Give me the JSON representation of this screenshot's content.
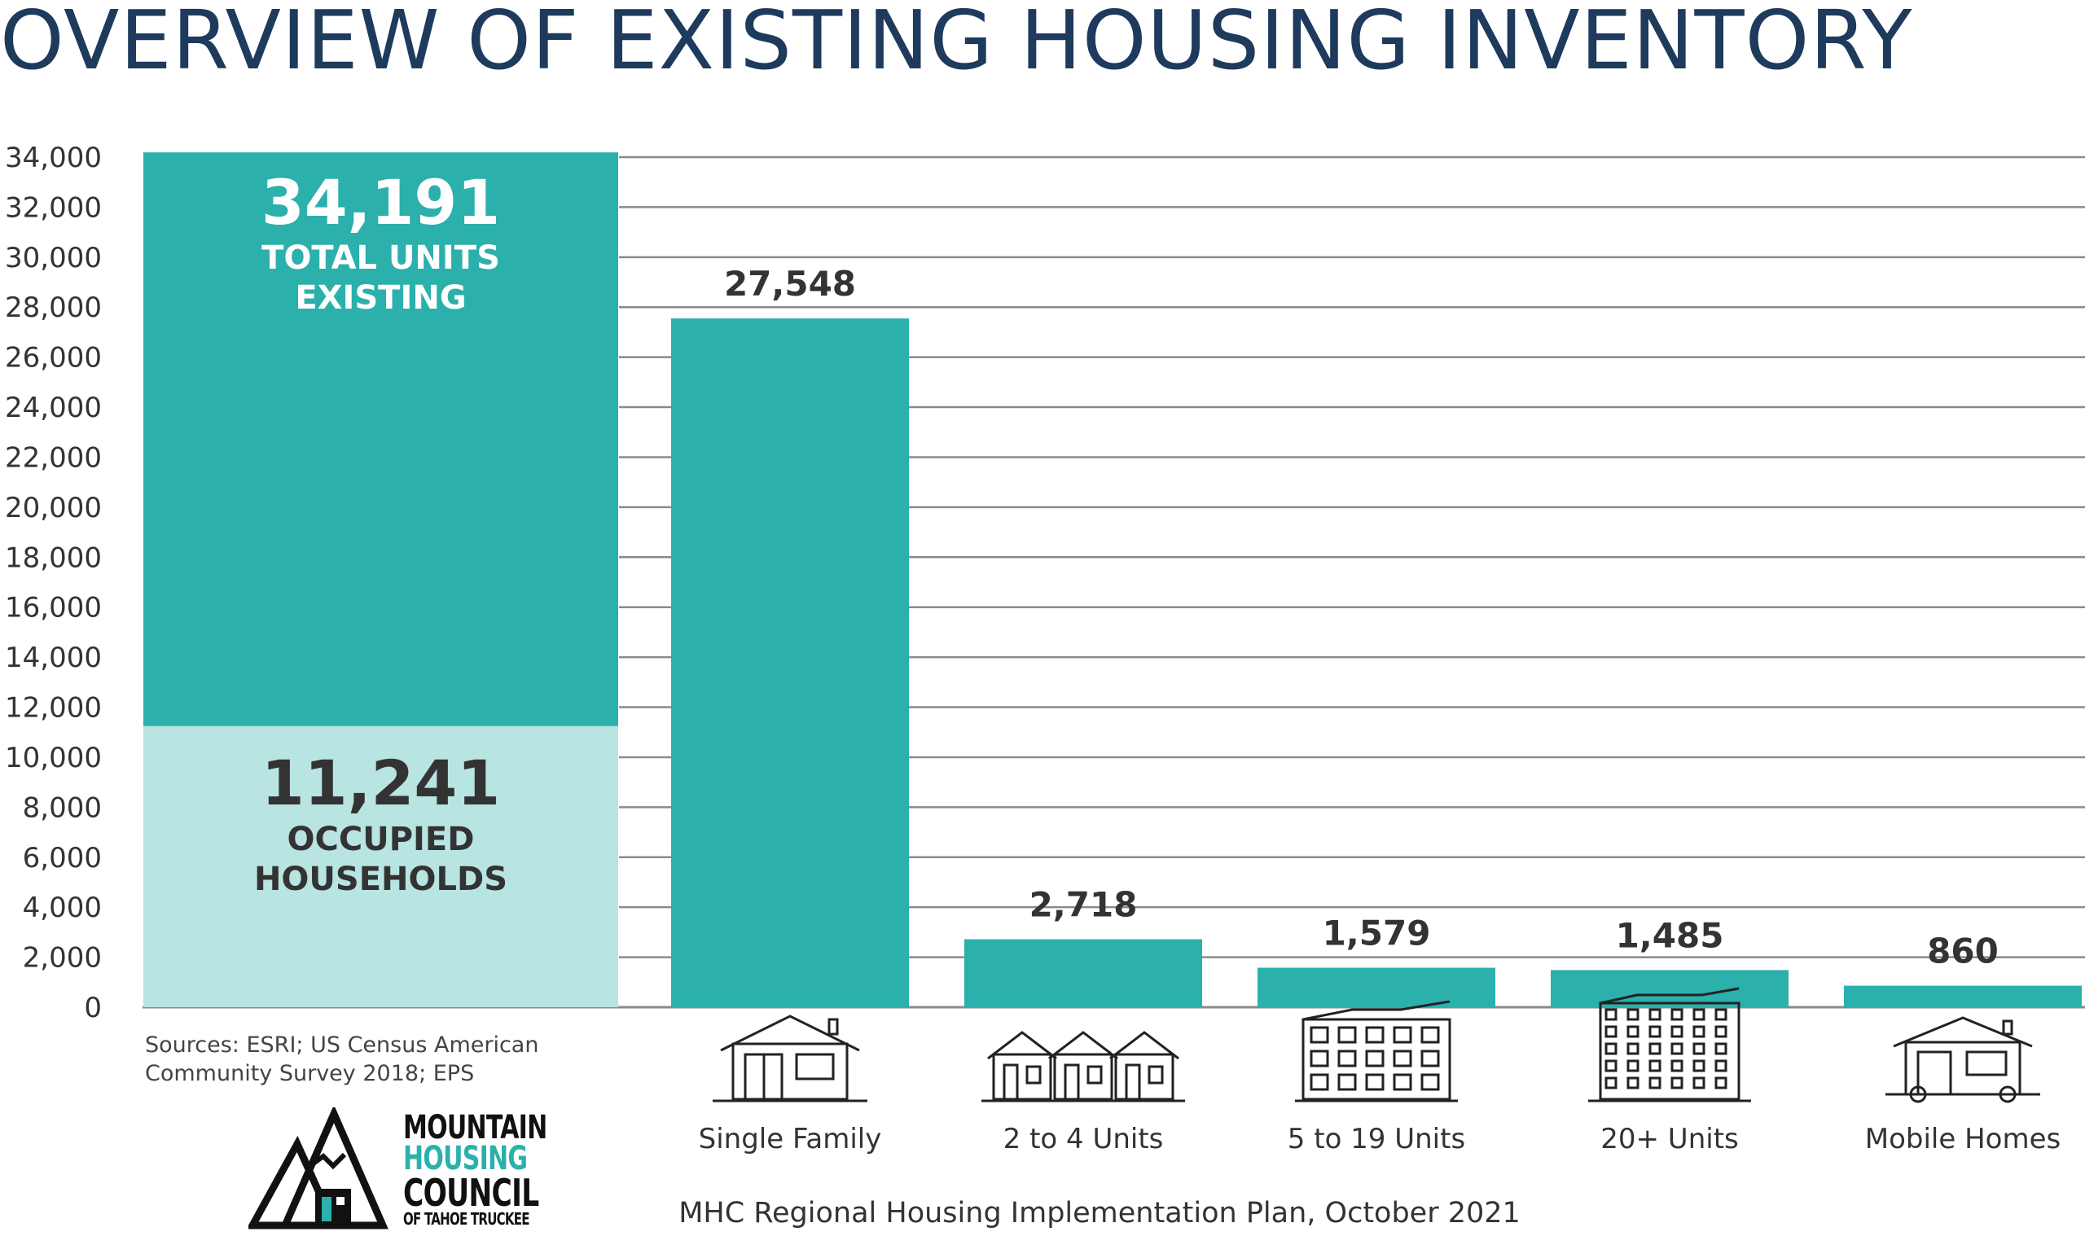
{
  "title": "OVERVIEW OF EXISTING HOUSING INVENTORY",
  "source_note": "Sources: ESRI; US Census American Community Survey 2018; EPS",
  "caption": "MHC Regional Housing Implementation Plan, October 2021",
  "logo": {
    "line1": "MOUNTAIN",
    "line2": "HOUSING",
    "line3": "COUNCIL",
    "line4": "OF TAHOE TRUCKEE"
  },
  "colors": {
    "bar": "#2bb0ac",
    "occupied": "#b8e4e2",
    "title": "#1e3a5c",
    "grid": "#8a8a8a"
  },
  "chart_data": {
    "type": "bar",
    "ylim": [
      0,
      34000
    ],
    "yticks": [
      "0",
      "2,000",
      "4,000",
      "6,000",
      "8,000",
      "10,000",
      "12,000",
      "14,000",
      "16,000",
      "18,000",
      "20,000",
      "22,000",
      "24,000",
      "26,000",
      "28,000",
      "30,000",
      "32,000",
      "34,000"
    ],
    "grid": true,
    "summary": {
      "total": 34191,
      "total_label": "34,191",
      "total_text_1": "TOTAL UNITS",
      "total_text_2": "EXISTING",
      "occupied": 11241,
      "occupied_label": "11,241",
      "occupied_text_1": "OCCUPIED",
      "occupied_text_2": "HOUSEHOLDS"
    },
    "categories": [
      "Single Family",
      "2 to 4 Units",
      "5 to 19 Units",
      "20+ Units",
      "Mobile Homes"
    ],
    "values": [
      27548,
      2718,
      1579,
      1485,
      860
    ],
    "value_labels": [
      "27,548",
      "2,718",
      "1,579",
      "1,485",
      "860"
    ],
    "icons": [
      "single-family-house-icon",
      "multiplex-houses-icon",
      "small-apartment-building-icon",
      "large-apartment-building-icon",
      "mobile-home-icon"
    ]
  }
}
